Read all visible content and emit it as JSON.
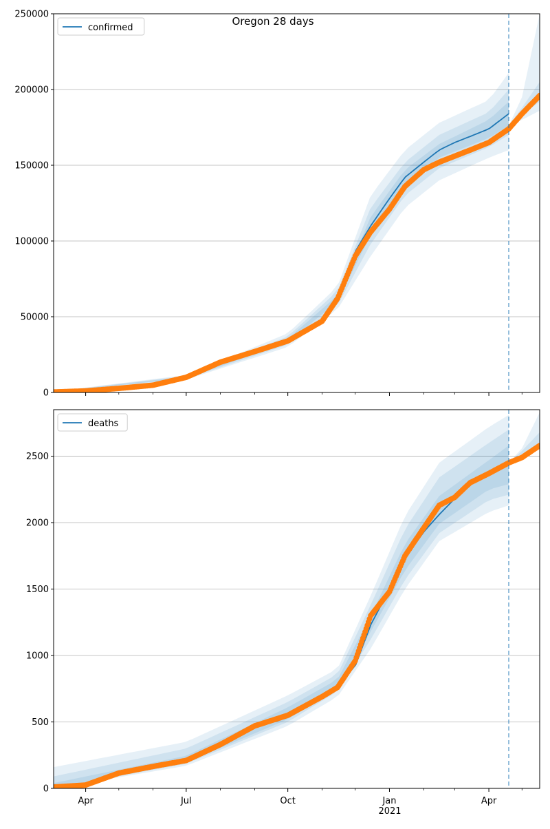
{
  "figure_title": "Oregon 28 days",
  "x_year_label": "2021",
  "x_ticks": [
    "2020-04-01",
    "2020-07-01",
    "2020-10-01",
    "2021-01-01",
    "2021-04-01"
  ],
  "x_tick_labels": [
    "Apr",
    "Jul",
    "Oct",
    "Jan",
    "Apr"
  ],
  "x_range": [
    "2020-03-03",
    "2021-05-17"
  ],
  "forecast_start": "2021-04-19",
  "colors": {
    "model": "#1f77b4",
    "observed": "#ff7f0e",
    "band": "#1f77b4",
    "grid": "#b0b0b0"
  },
  "chart_data": [
    {
      "type": "line",
      "title": "",
      "legend": "confirmed",
      "legend_position": "top-left",
      "ylim": [
        0,
        250000
      ],
      "y_ticks": [
        0,
        50000,
        100000,
        150000,
        200000,
        250000
      ],
      "y_tick_labels": [
        "0",
        "50000",
        "100000",
        "150000",
        "200000",
        "250000"
      ],
      "grid": "horizontal",
      "model_line": {
        "x": [
          "2020-03-03",
          "2020-04-01",
          "2020-05-01",
          "2020-06-01",
          "2020-07-01",
          "2020-08-01",
          "2020-09-01",
          "2020-10-01",
          "2020-11-01",
          "2020-11-15",
          "2020-12-01",
          "2020-12-15",
          "2021-01-01",
          "2021-01-15",
          "2021-02-01",
          "2021-02-15",
          "2021-03-01",
          "2021-03-15",
          "2021-04-01",
          "2021-04-19"
        ],
        "y": [
          300,
          1000,
          2700,
          4800,
          10000,
          20000,
          27000,
          34000,
          47000,
          62000,
          93000,
          110000,
          128000,
          142000,
          152000,
          160000,
          165000,
          169000,
          174000,
          184000
        ]
      },
      "observed": {
        "x": [
          "2020-03-03",
          "2020-04-01",
          "2020-05-01",
          "2020-06-01",
          "2020-07-01",
          "2020-08-01",
          "2020-09-01",
          "2020-10-01",
          "2020-11-01",
          "2020-11-15",
          "2020-12-01",
          "2020-12-15",
          "2021-01-01",
          "2021-01-15",
          "2021-02-01",
          "2021-02-15",
          "2021-03-01",
          "2021-03-15",
          "2021-04-01",
          "2021-04-19",
          "2021-05-01",
          "2021-05-17"
        ],
        "y": [
          300,
          1000,
          2700,
          4800,
          10000,
          20000,
          27000,
          34000,
          47000,
          62000,
          90000,
          106000,
          121000,
          136000,
          147000,
          152000,
          156000,
          160000,
          165000,
          174000,
          184000,
          196000
        ]
      },
      "bands": [
        {
          "level": "outer",
          "x": [
            "2020-03-03",
            "2020-07-01",
            "2020-10-01",
            "2020-11-15",
            "2020-12-15",
            "2021-01-15",
            "2021-02-15",
            "2021-04-01",
            "2021-04-19"
          ],
          "lower": [
            0,
            8500,
            30000,
            55000,
            90000,
            122000,
            140000,
            155000,
            160000
          ],
          "upper": [
            600,
            11500,
            39000,
            70000,
            130000,
            160000,
            178000,
            193000,
            211000
          ]
        },
        {
          "level": "middle",
          "x": [
            "2020-03-03",
            "2020-07-01",
            "2020-10-01",
            "2020-11-15",
            "2020-12-15",
            "2021-01-15",
            "2021-02-15",
            "2021-04-01",
            "2021-04-19"
          ],
          "lower": [
            100,
            9000,
            31500,
            57500,
            98000,
            130000,
            148000,
            162000,
            170000
          ],
          "upper": [
            500,
            11000,
            37000,
            67000,
            122000,
            152000,
            170000,
            185000,
            200000
          ]
        },
        {
          "level": "inner",
          "x": [
            "2020-03-03",
            "2020-07-01",
            "2020-10-01",
            "2020-11-15",
            "2020-12-15",
            "2021-01-15",
            "2021-02-15",
            "2021-04-01",
            "2021-04-19"
          ],
          "lower": [
            200,
            9500,
            33000,
            60000,
            104000,
            136000,
            155000,
            168000,
            176000
          ],
          "upper": [
            400,
            10500,
            35500,
            64000,
            116000,
            147000,
            164000,
            180000,
            192000
          ]
        }
      ],
      "forecast_bands": [
        {
          "level": "outer",
          "x": [
            "2021-04-19",
            "2021-05-01",
            "2021-05-17"
          ],
          "lower": [
            176000,
            180000,
            186000
          ],
          "upper": [
            176000,
            195000,
            250000
          ]
        },
        {
          "level": "inner",
          "x": [
            "2021-04-19",
            "2021-05-01",
            "2021-05-17"
          ],
          "lower": [
            176000,
            183000,
            192000
          ],
          "upper": [
            176000,
            188000,
            205000
          ]
        }
      ]
    },
    {
      "type": "line",
      "title": "",
      "legend": "deaths",
      "legend_position": "top-left",
      "ylim": [
        0,
        2850
      ],
      "y_ticks": [
        0,
        500,
        1000,
        1500,
        2000,
        2500
      ],
      "y_tick_labels": [
        "0",
        "500",
        "1000",
        "1500",
        "2000",
        "2500"
      ],
      "grid": "horizontal",
      "model_line": {
        "x": [
          "2020-03-03",
          "2020-04-01",
          "2020-05-01",
          "2020-06-01",
          "2020-07-01",
          "2020-08-01",
          "2020-09-01",
          "2020-10-01",
          "2020-11-01",
          "2020-11-15",
          "2020-12-01",
          "2020-12-15",
          "2021-01-01",
          "2021-01-15",
          "2021-02-01",
          "2021-02-15",
          "2021-03-01",
          "2021-03-15",
          "2021-04-01",
          "2021-04-19"
        ],
        "y": [
          10,
          25,
          115,
          165,
          210,
          330,
          470,
          550,
          690,
          780,
          920,
          1230,
          1500,
          1730,
          1930,
          2060,
          2180,
          2290,
          2380,
          2440
        ]
      },
      "observed": {
        "x": [
          "2020-03-03",
          "2020-04-01",
          "2020-05-01",
          "2020-06-01",
          "2020-07-01",
          "2020-08-01",
          "2020-09-01",
          "2020-10-01",
          "2020-11-01",
          "2020-11-15",
          "2020-12-01",
          "2020-12-15",
          "2021-01-01",
          "2021-01-15",
          "2021-02-01",
          "2021-02-15",
          "2021-03-01",
          "2021-03-15",
          "2021-04-01",
          "2021-04-19",
          "2021-05-01",
          "2021-05-17"
        ],
        "y": [
          10,
          25,
          115,
          165,
          210,
          330,
          470,
          550,
          690,
          760,
          960,
          1300,
          1480,
          1750,
          1960,
          2130,
          2190,
          2300,
          2370,
          2450,
          2490,
          2580
        ]
      },
      "bands": [
        {
          "level": "outer",
          "x": [
            "2020-03-03",
            "2020-07-01",
            "2020-10-01",
            "2020-11-15",
            "2020-12-15",
            "2021-01-15",
            "2021-02-15",
            "2021-04-01",
            "2021-04-19"
          ],
          "lower": [
            0,
            170,
            470,
            690,
            1050,
            1500,
            1860,
            2080,
            2130
          ],
          "upper": [
            160,
            350,
            700,
            900,
            1450,
            2050,
            2450,
            2720,
            2810
          ]
        },
        {
          "level": "middle",
          "x": [
            "2020-03-03",
            "2020-07-01",
            "2020-10-01",
            "2020-11-15",
            "2020-12-15",
            "2021-01-15",
            "2021-02-15",
            "2021-04-01",
            "2021-04-19"
          ],
          "lower": [
            0,
            185,
            500,
            730,
            1120,
            1570,
            1920,
            2170,
            2210
          ],
          "upper": [
            90,
            300,
            650,
            860,
            1380,
            1950,
            2340,
            2600,
            2700
          ]
        },
        {
          "level": "inner",
          "x": [
            "2020-03-03",
            "2020-07-01",
            "2020-10-01",
            "2020-11-15",
            "2020-12-15",
            "2021-01-15",
            "2021-02-15",
            "2021-04-01",
            "2021-04-19"
          ],
          "lower": [
            0,
            195,
            520,
            755,
            1180,
            1640,
            1990,
            2250,
            2290
          ],
          "upper": [
            40,
            245,
            610,
            820,
            1300,
            1840,
            2200,
            2470,
            2580
          ]
        }
      ],
      "forecast_bands": [
        {
          "level": "outer",
          "x": [
            "2021-04-19",
            "2021-05-01",
            "2021-05-17"
          ],
          "lower": [
            2450,
            2500,
            2560
          ],
          "upper": [
            2450,
            2560,
            2830
          ]
        },
        {
          "level": "inner",
          "x": [
            "2021-04-19",
            "2021-05-01",
            "2021-05-17"
          ],
          "lower": [
            2450,
            2510,
            2590
          ],
          "upper": [
            2450,
            2540,
            2680
          ]
        }
      ]
    }
  ]
}
